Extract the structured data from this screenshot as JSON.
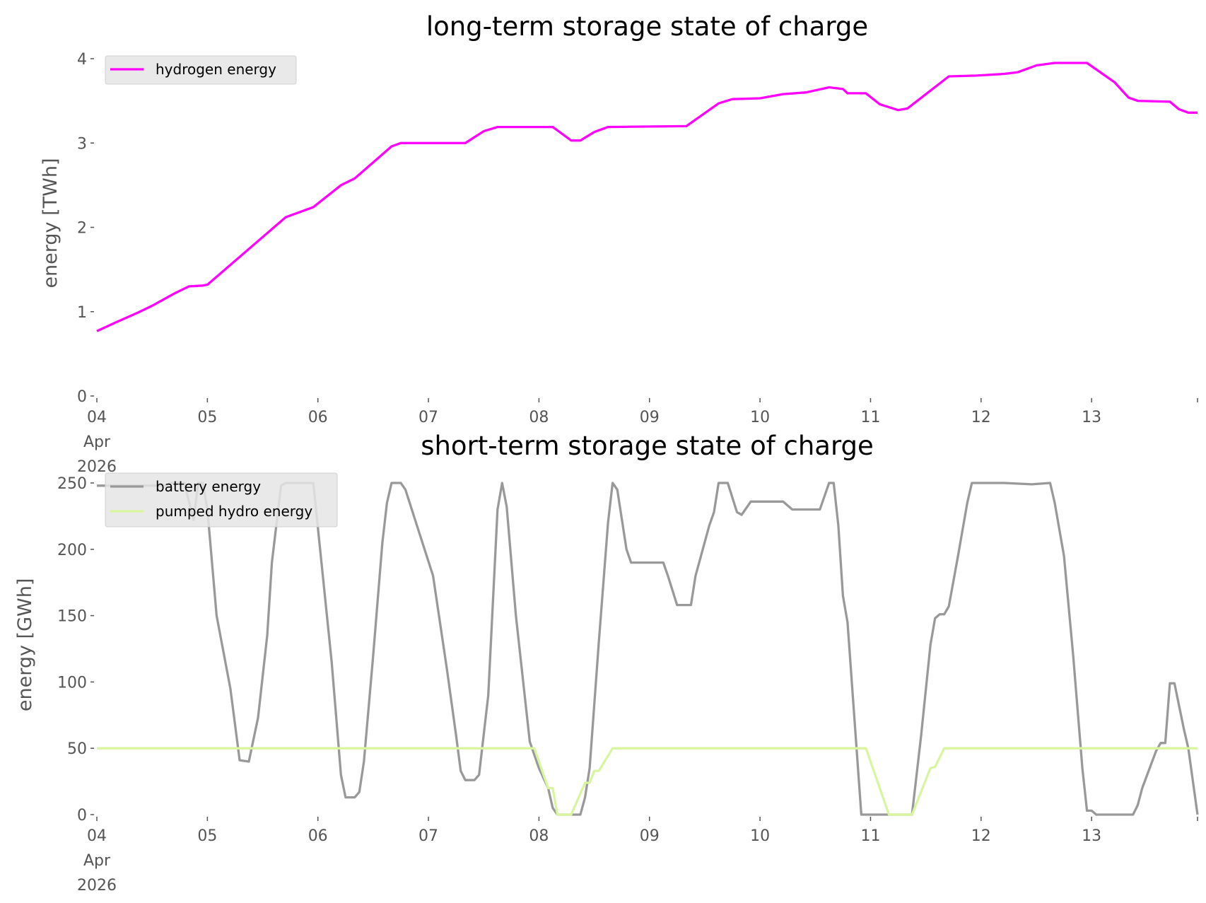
{
  "chart_data": [
    {
      "type": "line",
      "title": "long-term storage state of charge",
      "xlabel": "",
      "ylabel": "energy [TWh]",
      "xlim": [
        "2026-04-04T00:00",
        "2026-04-13T23:00"
      ],
      "ylim": [
        0,
        4.1
      ],
      "yticks": [
        0,
        1,
        2,
        3,
        4
      ],
      "xticks": [
        {
          "date": "2026-04-04T00:00",
          "label": "04\nApr\n2026"
        },
        {
          "date": "2026-04-05T00:00",
          "label": "05"
        },
        {
          "date": "2026-04-06T00:00",
          "label": "06"
        },
        {
          "date": "2026-04-07T00:00",
          "label": "07"
        },
        {
          "date": "2026-04-08T00:00",
          "label": "08"
        },
        {
          "date": "2026-04-09T00:00",
          "label": "09"
        },
        {
          "date": "2026-04-10T00:00",
          "label": "10"
        },
        {
          "date": "2026-04-11T00:00",
          "label": "11"
        },
        {
          "date": "2026-04-12T00:00",
          "label": "12"
        },
        {
          "date": "2026-04-13T00:00",
          "label": "13"
        },
        {
          "date": "2026-04-13T23:00",
          "label": ""
        }
      ],
      "grid": false,
      "legend_position": "top-left",
      "series": [
        {
          "name": "hydrogen energy",
          "color": "#ff00ff",
          "points": [
            [
              "2026-04-04T00:00",
              0.77
            ],
            [
              "2026-04-04T04:00",
              0.87
            ],
            [
              "2026-04-04T09:00",
              0.99
            ],
            [
              "2026-04-04T12:00",
              1.07
            ],
            [
              "2026-04-04T17:00",
              1.22
            ],
            [
              "2026-04-04T20:00",
              1.3
            ],
            [
              "2026-04-04T23:00",
              1.31
            ],
            [
              "2026-04-05T00:00",
              1.32
            ],
            [
              "2026-04-05T17:00",
              2.12
            ],
            [
              "2026-04-05T23:00",
              2.24
            ],
            [
              "2026-04-06T05:00",
              2.5
            ],
            [
              "2026-04-06T08:00",
              2.58
            ],
            [
              "2026-04-06T16:00",
              2.96
            ],
            [
              "2026-04-06T18:00",
              3.0
            ],
            [
              "2026-04-07T08:00",
              3.0
            ],
            [
              "2026-04-07T12:00",
              3.14
            ],
            [
              "2026-04-07T15:00",
              3.19
            ],
            [
              "2026-04-08T03:00",
              3.19
            ],
            [
              "2026-04-08T07:00",
              3.03
            ],
            [
              "2026-04-08T09:00",
              3.03
            ],
            [
              "2026-04-08T12:00",
              3.13
            ],
            [
              "2026-04-08T15:00",
              3.19
            ],
            [
              "2026-04-09T08:00",
              3.2
            ],
            [
              "2026-04-09T15:00",
              3.47
            ],
            [
              "2026-04-09T18:00",
              3.52
            ],
            [
              "2026-04-10T00:00",
              3.53
            ],
            [
              "2026-04-10T05:00",
              3.58
            ],
            [
              "2026-04-10T10:00",
              3.6
            ],
            [
              "2026-04-10T15:00",
              3.66
            ],
            [
              "2026-04-10T18:00",
              3.64
            ],
            [
              "2026-04-10T19:00",
              3.59
            ],
            [
              "2026-04-10T23:00",
              3.59
            ],
            [
              "2026-04-11T02:00",
              3.46
            ],
            [
              "2026-04-11T06:00",
              3.39
            ],
            [
              "2026-04-11T08:00",
              3.41
            ],
            [
              "2026-04-11T17:00",
              3.79
            ],
            [
              "2026-04-11T23:00",
              3.8
            ],
            [
              "2026-04-12T05:00",
              3.82
            ],
            [
              "2026-04-12T08:00",
              3.84
            ],
            [
              "2026-04-12T12:00",
              3.92
            ],
            [
              "2026-04-12T16:00",
              3.95
            ],
            [
              "2026-04-12T23:00",
              3.95
            ],
            [
              "2026-04-13T05:00",
              3.72
            ],
            [
              "2026-04-13T08:00",
              3.54
            ],
            [
              "2026-04-13T10:00",
              3.5
            ],
            [
              "2026-04-13T17:00",
              3.49
            ],
            [
              "2026-04-13T19:00",
              3.4
            ],
            [
              "2026-04-13T21:00",
              3.36
            ],
            [
              "2026-04-13T23:00",
              3.36
            ]
          ]
        }
      ]
    },
    {
      "type": "line",
      "title": "short-term storage state of charge",
      "xlabel": "",
      "ylabel": "energy [GWh]",
      "xlim": [
        "2026-04-04T00:00",
        "2026-04-13T23:00"
      ],
      "ylim": [
        0,
        256
      ],
      "yticks": [
        0,
        50,
        100,
        150,
        200,
        250
      ],
      "xticks": [
        {
          "date": "2026-04-04T00:00",
          "label": "04\nApr\n2026"
        },
        {
          "date": "2026-04-05T00:00",
          "label": "05"
        },
        {
          "date": "2026-04-06T00:00",
          "label": "06"
        },
        {
          "date": "2026-04-07T00:00",
          "label": "07"
        },
        {
          "date": "2026-04-08T00:00",
          "label": "08"
        },
        {
          "date": "2026-04-09T00:00",
          "label": "09"
        },
        {
          "date": "2026-04-10T00:00",
          "label": "10"
        },
        {
          "date": "2026-04-11T00:00",
          "label": "11"
        },
        {
          "date": "2026-04-12T00:00",
          "label": "12"
        },
        {
          "date": "2026-04-13T00:00",
          "label": "13"
        },
        {
          "date": "2026-04-13T23:00",
          "label": ""
        }
      ],
      "grid": false,
      "legend_position": "top-left",
      "series": [
        {
          "name": "battery energy",
          "color": "#999999",
          "points": [
            [
              "2026-04-04T00:00",
              248
            ],
            [
              "2026-04-04T15:00",
              248
            ],
            [
              "2026-04-04T16:00",
              250
            ],
            [
              "2026-04-04T19:00",
              250
            ],
            [
              "2026-04-04T21:00",
              222
            ],
            [
              "2026-04-04T22:00",
              250
            ],
            [
              "2026-04-04T23:00",
              250
            ],
            [
              "2026-04-05T00:00",
              230
            ],
            [
              "2026-04-05T02:00",
              150
            ],
            [
              "2026-04-05T05:00",
              95
            ],
            [
              "2026-04-05T07:00",
              41
            ],
            [
              "2026-04-05T09:00",
              40
            ],
            [
              "2026-04-05T11:00",
              73
            ],
            [
              "2026-04-05T13:00",
              135
            ],
            [
              "2026-04-05T14:00",
              190
            ],
            [
              "2026-04-05T16:00",
              248
            ],
            [
              "2026-04-05T17:00",
              250
            ],
            [
              "2026-04-05T23:00",
              250
            ],
            [
              "2026-04-06T03:00",
              115
            ],
            [
              "2026-04-06T05:00",
              30
            ],
            [
              "2026-04-06T06:00",
              13
            ],
            [
              "2026-04-06T08:00",
              13
            ],
            [
              "2026-04-06T09:00",
              17
            ],
            [
              "2026-04-06T10:00",
              40
            ],
            [
              "2026-04-06T12:00",
              120
            ],
            [
              "2026-04-06T14:00",
              205
            ],
            [
              "2026-04-06T15:00",
              235
            ],
            [
              "2026-04-06T16:00",
              250
            ],
            [
              "2026-04-06T18:00",
              250
            ],
            [
              "2026-04-06T19:00",
              245
            ],
            [
              "2026-04-07T01:00",
              180
            ],
            [
              "2026-04-07T04:00",
              110
            ],
            [
              "2026-04-07T06:00",
              60
            ],
            [
              "2026-04-07T07:00",
              33
            ],
            [
              "2026-04-07T08:00",
              26
            ],
            [
              "2026-04-07T10:00",
              26
            ],
            [
              "2026-04-07T11:00",
              30
            ],
            [
              "2026-04-07T13:00",
              90
            ],
            [
              "2026-04-07T15:00",
              230
            ],
            [
              "2026-04-07T16:00",
              250
            ],
            [
              "2026-04-07T17:00",
              232
            ],
            [
              "2026-04-07T19:00",
              150
            ],
            [
              "2026-04-07T22:00",
              55
            ],
            [
              "2026-04-08T00:00",
              35
            ],
            [
              "2026-04-08T02:00",
              20
            ],
            [
              "2026-04-08T03:00",
              5
            ],
            [
              "2026-04-08T04:00",
              0
            ],
            [
              "2026-04-08T09:00",
              0
            ],
            [
              "2026-04-08T10:00",
              13
            ],
            [
              "2026-04-08T11:00",
              35
            ],
            [
              "2026-04-08T13:00",
              130
            ],
            [
              "2026-04-08T15:00",
              220
            ],
            [
              "2026-04-08T16:00",
              250
            ],
            [
              "2026-04-08T17:00",
              245
            ],
            [
              "2026-04-08T19:00",
              200
            ],
            [
              "2026-04-08T20:00",
              190
            ],
            [
              "2026-04-08T22:00",
              190
            ],
            [
              "2026-04-09T03:00",
              190
            ],
            [
              "2026-04-09T04:00",
              180
            ],
            [
              "2026-04-09T06:00",
              158
            ],
            [
              "2026-04-09T09:00",
              158
            ],
            [
              "2026-04-09T10:00",
              180
            ],
            [
              "2026-04-09T13:00",
              218
            ],
            [
              "2026-04-09T14:00",
              228
            ],
            [
              "2026-04-09T15:00",
              250
            ],
            [
              "2026-04-09T17:00",
              250
            ],
            [
              "2026-04-09T19:00",
              228
            ],
            [
              "2026-04-09T20:00",
              226
            ],
            [
              "2026-04-09T22:00",
              236
            ],
            [
              "2026-04-10T05:00",
              236
            ],
            [
              "2026-04-10T07:00",
              230
            ],
            [
              "2026-04-10T13:00",
              230
            ],
            [
              "2026-04-10T15:00",
              250
            ],
            [
              "2026-04-10T16:00",
              250
            ],
            [
              "2026-04-10T17:00",
              218
            ],
            [
              "2026-04-10T18:00",
              165
            ],
            [
              "2026-04-10T19:00",
              145
            ],
            [
              "2026-04-10T22:00",
              0
            ],
            [
              "2026-04-11T09:00",
              0
            ],
            [
              "2026-04-11T11:00",
              60
            ],
            [
              "2026-04-11T13:00",
              128
            ],
            [
              "2026-04-11T14:00",
              148
            ],
            [
              "2026-04-11T15:00",
              151
            ],
            [
              "2026-04-11T16:00",
              151
            ],
            [
              "2026-04-11T17:00",
              157
            ],
            [
              "2026-04-11T19:00",
              195
            ],
            [
              "2026-04-11T21:00",
              235
            ],
            [
              "2026-04-11T22:00",
              250
            ],
            [
              "2026-04-12T05:00",
              250
            ],
            [
              "2026-04-12T11:00",
              249
            ],
            [
              "2026-04-12T15:00",
              250
            ],
            [
              "2026-04-12T16:00",
              235
            ],
            [
              "2026-04-12T18:00",
              195
            ],
            [
              "2026-04-12T20:00",
              120
            ],
            [
              "2026-04-12T22:00",
              35
            ],
            [
              "2026-04-12T23:00",
              3
            ],
            [
              "2026-04-13T00:00",
              3
            ],
            [
              "2026-04-13T01:00",
              0
            ],
            [
              "2026-04-13T09:00",
              0
            ],
            [
              "2026-04-13T10:00",
              7
            ],
            [
              "2026-04-13T11:00",
              20
            ],
            [
              "2026-04-13T14:00",
              48
            ],
            [
              "2026-04-13T15:00",
              54
            ],
            [
              "2026-04-13T16:00",
              54
            ],
            [
              "2026-04-13T17:00",
              99
            ],
            [
              "2026-04-13T18:00",
              99
            ],
            [
              "2026-04-13T20:00",
              65
            ],
            [
              "2026-04-13T21:00",
              50
            ],
            [
              "2026-04-13T23:00",
              0
            ]
          ]
        },
        {
          "name": "pumped hydro energy",
          "color": "#d9f5a0",
          "points": [
            [
              "2026-04-04T00:00",
              50
            ],
            [
              "2026-04-07T23:00",
              50
            ],
            [
              "2026-04-08T02:00",
              20
            ],
            [
              "2026-04-08T03:00",
              20
            ],
            [
              "2026-04-08T04:00",
              0
            ],
            [
              "2026-04-08T07:00",
              0
            ],
            [
              "2026-04-08T10:00",
              24
            ],
            [
              "2026-04-08T11:00",
              24
            ],
            [
              "2026-04-08T12:00",
              33
            ],
            [
              "2026-04-08T13:00",
              33
            ],
            [
              "2026-04-08T16:00",
              50
            ],
            [
              "2026-04-10T23:00",
              50
            ],
            [
              "2026-04-11T04:00",
              0
            ],
            [
              "2026-04-11T09:00",
              0
            ],
            [
              "2026-04-11T13:00",
              35
            ],
            [
              "2026-04-11T14:00",
              36
            ],
            [
              "2026-04-11T16:00",
              50
            ],
            [
              "2026-04-13T23:00",
              50
            ]
          ]
        }
      ]
    }
  ]
}
